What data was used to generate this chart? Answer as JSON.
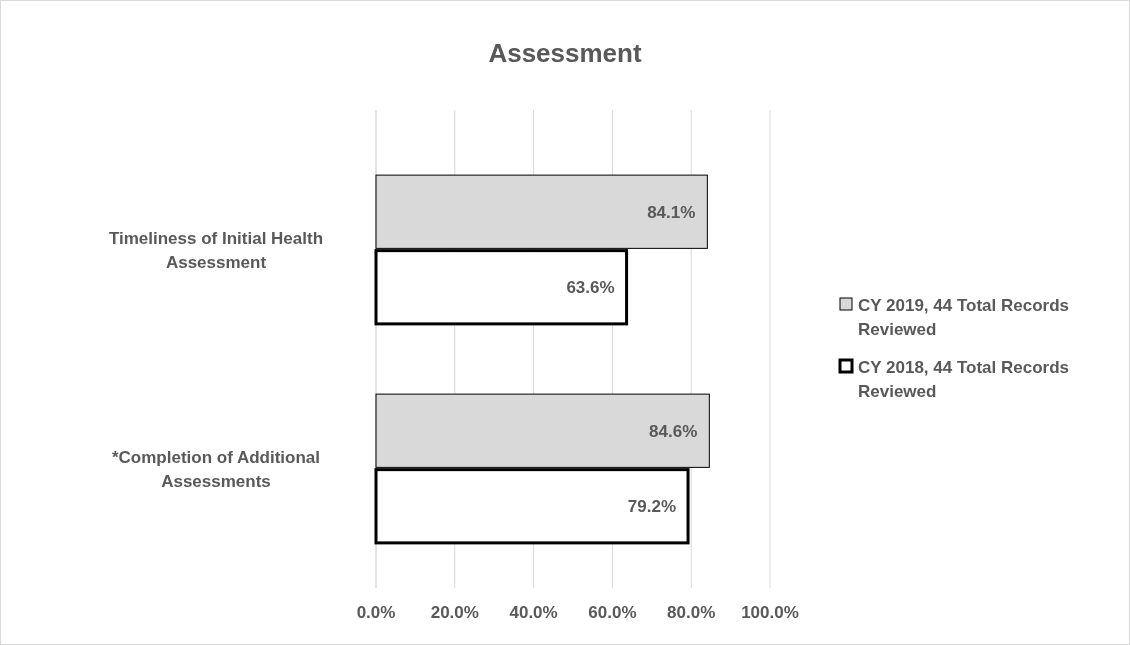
{
  "chart_data": {
    "type": "bar",
    "orientation": "horizontal",
    "title": "Assessment",
    "categories": [
      "Timeliness of Initial Health Assessment",
      "*Completion of Additional Assessments"
    ],
    "series": [
      {
        "name": "CY 2019, 44 Total Records Reviewed",
        "color": "#d9d9d9",
        "values": [
          84.1,
          84.6
        ],
        "value_labels": [
          "84.1%",
          "84.6%"
        ]
      },
      {
        "name": "CY 2018, 44 Total Records Reviewed",
        "color": "#ffffff",
        "values": [
          63.6,
          79.2
        ],
        "value_labels": [
          "63.6%",
          "79.2%"
        ]
      }
    ],
    "xlim": [
      0,
      100
    ],
    "xticks": [
      {
        "value": 0,
        "label": "0.0%"
      },
      {
        "value": 20,
        "label": "20.0%"
      },
      {
        "value": 40,
        "label": "40.0%"
      },
      {
        "value": 60,
        "label": "60.0%"
      },
      {
        "value": 80,
        "label": "80.0%"
      },
      {
        "value": 100,
        "label": "100.0%"
      }
    ],
    "grid": "x",
    "legend": "right"
  }
}
